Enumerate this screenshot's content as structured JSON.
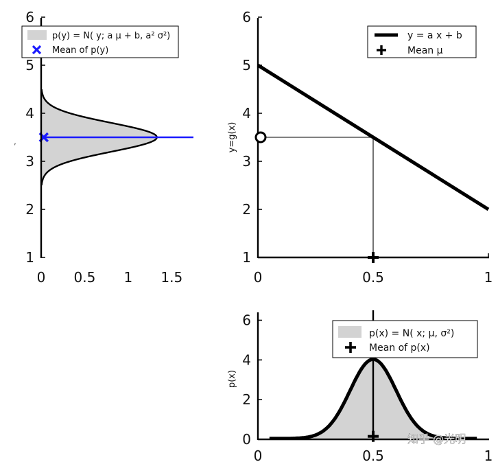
{
  "chart_data": [
    {
      "id": "py",
      "type": "area",
      "orientation": "horizontal",
      "xlim": [
        0,
        1.75
      ],
      "ylim": [
        1,
        6
      ],
      "xticks": [
        "0",
        "0.5",
        "1",
        "1.5"
      ],
      "xtick_values": [
        0,
        0.5,
        1,
        1.5
      ],
      "yticks": [
        "1",
        "2",
        "3",
        "4",
        "5",
        "6"
      ],
      "ytick_values": [
        1,
        2,
        3,
        4,
        5,
        6
      ],
      "series": [
        {
          "name": "p(y) = N( y; a μ + b, a² σ²)",
          "dist": "gaussian",
          "mean": 3.5,
          "sd": 0.3,
          "peak": 1.33
        },
        {
          "name": "Mean of p(y)",
          "marker": "x",
          "x": 0.03,
          "y": 3.5
        }
      ],
      "mean_line_y": 3.5,
      "legend": [
        {
          "label": "p(y) = N( y; a μ + b, a² σ²)",
          "symbol": "patch"
        },
        {
          "label": "Mean of p(y)",
          "symbol": "x"
        }
      ],
      "legend_location": "top"
    },
    {
      "id": "g",
      "type": "line",
      "xlim": [
        0,
        1
      ],
      "ylim": [
        1,
        6
      ],
      "xticks": [
        "0",
        "0.5",
        "1"
      ],
      "xtick_values": [
        0,
        0.5,
        1
      ],
      "yticks": [
        "1",
        "2",
        "3",
        "4",
        "5",
        "6"
      ],
      "ytick_values": [
        1,
        2,
        3,
        4,
        5,
        6
      ],
      "ylabel": "y=g(x)",
      "series": [
        {
          "name": "y = a x + b",
          "x": [
            0,
            1
          ],
          "y": [
            5,
            2
          ]
        },
        {
          "name": "Mean μ",
          "marker": "+",
          "x": 0.5,
          "y": 1
        }
      ],
      "guide_point": {
        "x": 0.5,
        "y": 3.5
      },
      "legend": [
        {
          "label": "y = a x + b",
          "symbol": "line"
        },
        {
          "label": "Mean μ",
          "symbol": "+"
        }
      ],
      "legend_location": "top-right"
    },
    {
      "id": "px",
      "type": "area",
      "xlim": [
        0,
        1
      ],
      "ylim": [
        0,
        6.5
      ],
      "xticks": [
        "0",
        "0.5",
        "1"
      ],
      "xtick_values": [
        0,
        0.5,
        1
      ],
      "yticks": [
        "0",
        "2",
        "4",
        "6"
      ],
      "ytick_values": [
        0,
        2,
        4,
        6
      ],
      "ylabel": "p(x)",
      "series": [
        {
          "name": "p(x) = N( x; μ, σ²)",
          "dist": "gaussian",
          "mean": 0.5,
          "sd": 0.1,
          "peak": 3.99
        },
        {
          "name": "Mean of p(x)",
          "marker": "+",
          "x": 0.5,
          "y": 0.15
        }
      ],
      "legend": [
        {
          "label": "p(x) = N( x; μ, σ²)",
          "symbol": "patch"
        },
        {
          "label": "Mean of p(x)",
          "symbol": "+"
        }
      ],
      "legend_location": "top-right"
    }
  ],
  "colors": {
    "fill": "#d3d3d3",
    "curve": "#000000",
    "mean_marker": "#1a1aff",
    "mean_line": "#1a1aff"
  },
  "watermark": "知乎 @光明"
}
